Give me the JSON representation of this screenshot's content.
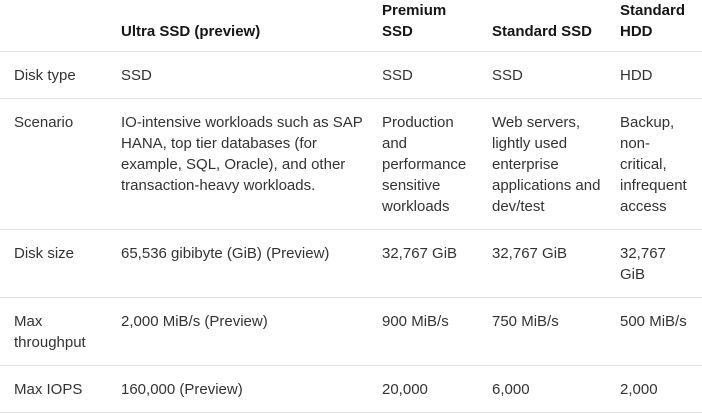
{
  "colors": {
    "background": "#ffffff",
    "heading_text": "#161616",
    "body_text": "#333333",
    "row_divider": "#e3e3e3"
  },
  "table": {
    "columns": [
      {
        "label": ""
      },
      {
        "label": "Ultra SSD (preview)"
      },
      {
        "label": "Premium SSD"
      },
      {
        "label": "Standard SSD"
      },
      {
        "label": "Standard HDD"
      }
    ],
    "rows": [
      {
        "header": "Disk type",
        "cells": [
          "SSD",
          "SSD",
          "SSD",
          "HDD"
        ]
      },
      {
        "header": "Scenario",
        "cells": [
          "IO-intensive workloads such as SAP HANA, top tier databases (for example, SQL, Oracle), and other transaction-heavy workloads.",
          "Production and performance sensitive workloads",
          "Web servers, lightly used enterprise applications and dev/test",
          "Backup, non-critical, infrequent access"
        ]
      },
      {
        "header": "Disk size",
        "cells": [
          "65,536 gibibyte (GiB) (Preview)",
          "32,767 GiB",
          "32,767 GiB",
          "32,767 GiB"
        ]
      },
      {
        "header": "Max throughput",
        "cells": [
          "2,000 MiB/s (Preview)",
          "900 MiB/s",
          "750 MiB/s",
          "500 MiB/s"
        ]
      },
      {
        "header": "Max IOPS",
        "cells": [
          "160,000 (Preview)",
          "20,000",
          "6,000",
          "2,000"
        ]
      }
    ]
  }
}
